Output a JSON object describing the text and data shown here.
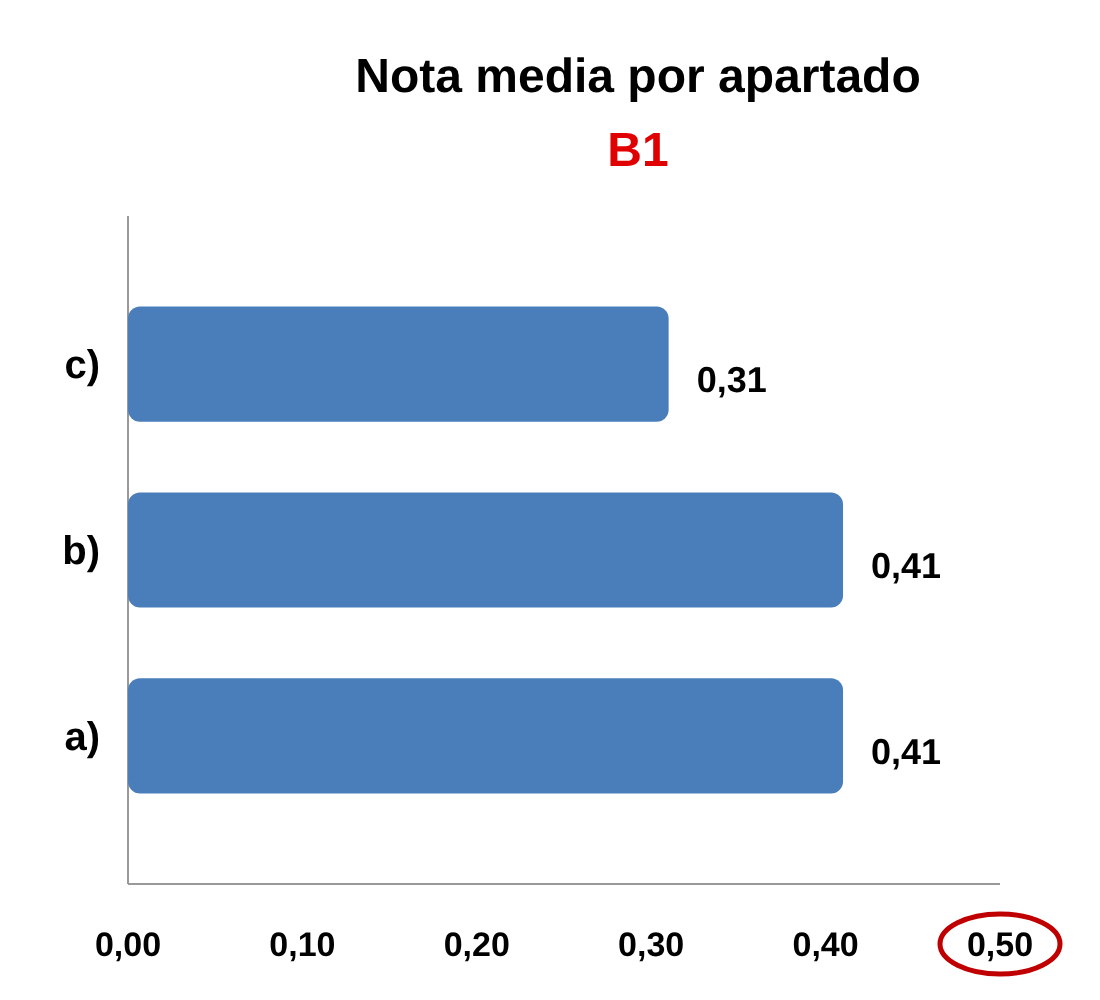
{
  "chart_data": {
    "type": "bar",
    "orientation": "horizontal",
    "title": "Nota media por apartado",
    "subtitle": "B1",
    "categories": [
      "c)",
      "b)",
      "a)"
    ],
    "values": [
      0.31,
      0.41,
      0.41
    ],
    "value_labels": [
      "0,31",
      "0,41",
      "0,41"
    ],
    "color": "#4a7ebb",
    "xlim": [
      0,
      0.5
    ],
    "xticks": [
      {
        "value": 0,
        "label": "0,00"
      },
      {
        "value": 0.1,
        "label": "0,10"
      },
      {
        "value": 0.2,
        "label": "0,20"
      },
      {
        "value": 0.3,
        "label": "0,30"
      },
      {
        "value": 0.4,
        "label": "0,40"
      },
      {
        "value": 0.5,
        "label": "0,50"
      }
    ],
    "grid": false
  }
}
